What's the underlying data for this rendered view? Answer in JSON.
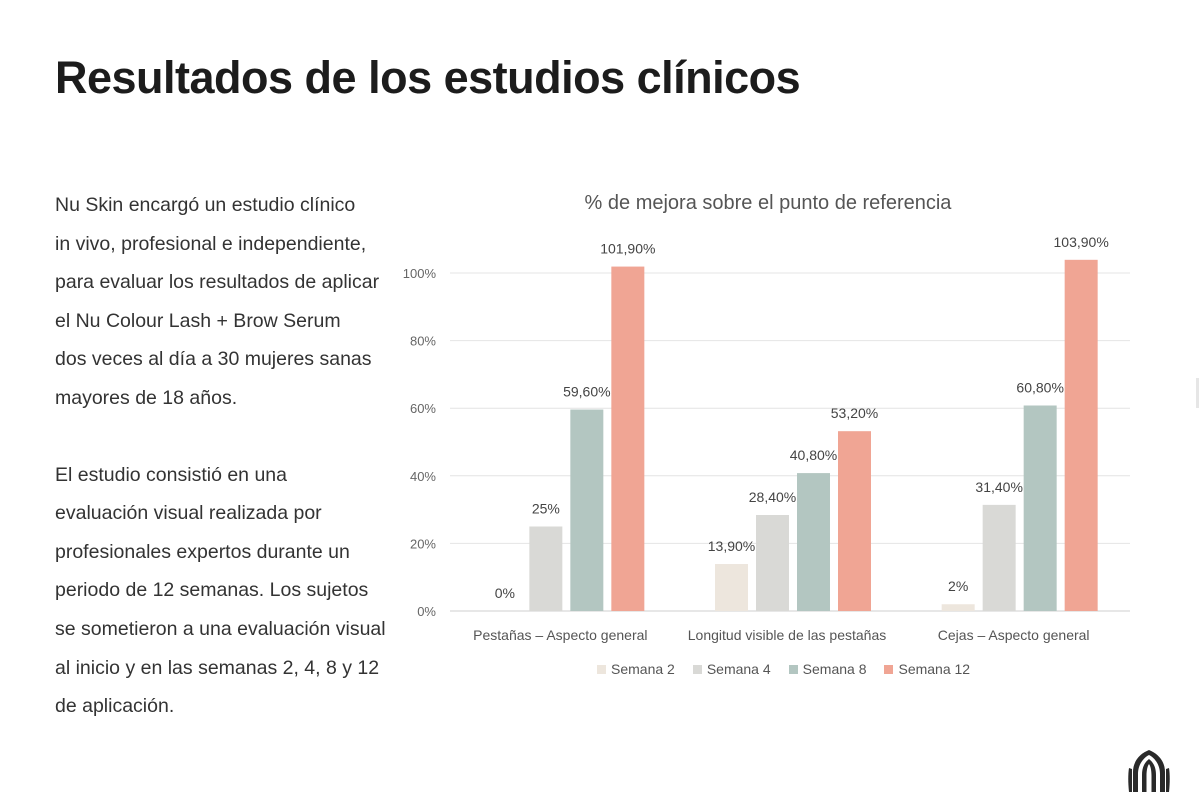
{
  "page": {
    "title": "Resultados de los estudios clínicos",
    "paragraph1": [
      "Nu Skin encargó un estudio clínico",
      "in vivo, profesional e independiente,",
      "para evaluar los resultados de aplicar",
      "el Nu Colour Lash + Brow Serum",
      "dos veces al día a 30 mujeres sanas",
      "mayores de 18 años."
    ],
    "paragraph2": [
      "El estudio consistió en una",
      "evaluación visual realizada por",
      "profesionales expertos durante un",
      "periodo de 12 semanas. Los sujetos",
      "se sometieron a una evaluación visual",
      "al inicio y en las semanas 2, 4, 8 y 12",
      "de aplicación."
    ],
    "logo_icon": "nu-skin-logo-icon"
  },
  "chart_data": {
    "type": "bar",
    "title": "% de mejora sobre el punto de referencia",
    "categories": [
      "Pestañas – Aspecto general",
      "Longitud visible de las pestañas",
      "Cejas – Aspecto general"
    ],
    "series": [
      {
        "name": "Semana 2",
        "color": "#ede6dd",
        "values": [
          0,
          13.9,
          2
        ],
        "labels": [
          "0%",
          "13,90%",
          "2%"
        ]
      },
      {
        "name": "Semana 4",
        "color": "#d9d9d6",
        "values": [
          25,
          28.4,
          31.4
        ],
        "labels": [
          "25%",
          "28,40%",
          "31,40%"
        ]
      },
      {
        "name": "Semana 8",
        "color": "#b3c6c1",
        "values": [
          59.6,
          40.8,
          60.8
        ],
        "labels": [
          "59,60%",
          "40,80%",
          "60,80%"
        ]
      },
      {
        "name": "Semana 12",
        "color": "#f0a594",
        "values": [
          101.9,
          53.2,
          103.9
        ],
        "labels": [
          "101,90%",
          "53,20%",
          "103,90%"
        ]
      }
    ],
    "ylim": [
      0,
      100
    ],
    "yticks": [
      0,
      20,
      40,
      60,
      80,
      100
    ],
    "ytick_labels": [
      "0%",
      "20%",
      "40%",
      "60%",
      "80%",
      "100%"
    ],
    "xlabel": "",
    "ylabel": "",
    "grid": true,
    "legend": "bottom"
  }
}
